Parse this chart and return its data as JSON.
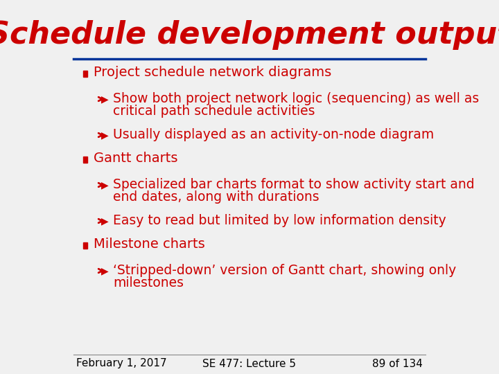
{
  "title": "Schedule development output",
  "title_color": "#cc0000",
  "title_font": "Arial",
  "title_fontsize": 32,
  "background_color": "#f0f0f0",
  "slide_bg": "#f0f0f0",
  "header_line_color": "#003399",
  "bullet_color": "#cc0000",
  "text_color": "#cc0000",
  "footer_left": "February 1, 2017",
  "footer_center": "SE 477: Lecture 5",
  "footer_right": "89 of 134",
  "footer_color": "#000000",
  "footer_fontsize": 11,
  "bullet_items": [
    {
      "level": 1,
      "text": "Project schedule network diagrams"
    },
    {
      "level": 2,
      "text": "Show both project network logic (sequencing) as well as\ncritical path schedule activities"
    },
    {
      "level": 2,
      "text": "Usually displayed as an activity-on-node diagram"
    },
    {
      "level": 1,
      "text": "Gantt charts"
    },
    {
      "level": 2,
      "text": "Specialized bar charts format to show activity start and\nend dates, along with durations"
    },
    {
      "level": 2,
      "text": "Easy to read but limited by low information density"
    },
    {
      "level": 1,
      "text": "Milestone charts"
    },
    {
      "level": 2,
      "text": "‘Stripped-down’ version of Gantt chart, showing only\nmilestones"
    }
  ]
}
